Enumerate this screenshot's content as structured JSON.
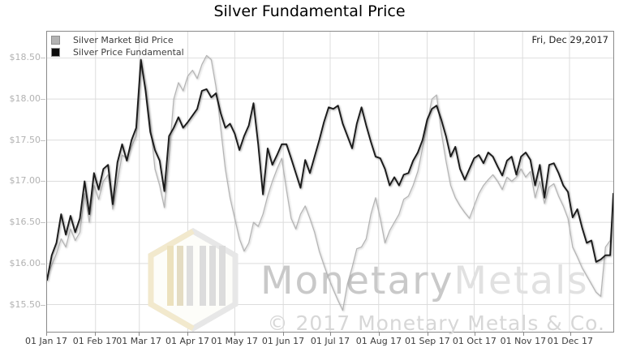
{
  "header": {
    "title": "Silver Fundamental Price"
  },
  "plot": {
    "date_annotation": "Fri, Dec 29,2017",
    "legend": {
      "items": [
        {
          "label": "Silver Market Bid Price",
          "swatch_color": "#b3b3b3"
        },
        {
          "label": "Silver Price Fundamental",
          "swatch_color": "#0d0d0d"
        }
      ]
    },
    "watermark": {
      "brand_primary": "Monetary",
      "brand_secondary": "Metals",
      "copyright": "© 2017 Monetary Metals & Co.",
      "logo": "monetary-metals-hexagon-logo",
      "logo_accent_color": "#f2e9cd",
      "text_color_primary": "#c9c9c9",
      "text_color_secondary": "#e1e1e1"
    }
  },
  "axes": {
    "y_labels": [
      "$18.50",
      "$18.00",
      "$17.50",
      "$17.00",
      "$16.50",
      "$16.00",
      "$15.50"
    ],
    "x_labels": [
      "01 Jan 17",
      "01 Feb 17",
      "01 Mar 17",
      "01 Apr 17",
      "01 May 17",
      "01 Jun 17",
      "01 Jul 17",
      "01 Aug 17",
      "01 Sep 17",
      "01 Oct 17",
      "01 Nov 17",
      "01 Dec 17"
    ]
  },
  "chart_data": {
    "type": "line",
    "title": "Silver Fundamental Price",
    "xlabel": "",
    "ylabel": "",
    "annotation": "Fri, Dec 29,2017",
    "grid": true,
    "legend_position": "top-left",
    "x_unit": "days since 01 Jan 2017",
    "x_range": [
      0,
      362
    ],
    "y_range_display": [
      15.17,
      18.82
    ],
    "y_tick_values": [
      18.5,
      18.0,
      17.5,
      17.0,
      16.5,
      16.0,
      15.5
    ],
    "y_tick_labels": [
      "$18.50",
      "$18.00",
      "$17.50",
      "$17.00",
      "$16.50",
      "$16.00",
      "$15.50"
    ],
    "x_tick_labels": [
      "01 Jan 17",
      "01 Feb 17",
      "01 Mar 17",
      "01 Apr 17",
      "01 May 17",
      "01 Jun 17",
      "01 Jul 17",
      "01 Aug 17",
      "01 Sep 17",
      "01 Oct 17",
      "01 Nov 17",
      "01 Dec 17"
    ],
    "x_tick_days": [
      0,
      31,
      59,
      90,
      120,
      151,
      181,
      212,
      243,
      273,
      304,
      334
    ],
    "days": [
      0,
      3,
      6,
      9,
      12,
      15,
      18,
      21,
      24,
      27,
      30,
      33,
      36,
      39,
      42,
      45,
      48,
      51,
      54,
      57,
      60,
      63,
      66,
      69,
      72,
      75,
      78,
      81,
      84,
      87,
      90,
      93,
      96,
      99,
      102,
      105,
      108,
      111,
      114,
      117,
      120,
      123,
      126,
      129,
      132,
      135,
      138,
      141,
      144,
      147,
      150,
      153,
      156,
      159,
      162,
      165,
      168,
      171,
      174,
      177,
      180,
      183,
      186,
      189,
      192,
      195,
      198,
      201,
      204,
      207,
      210,
      213,
      216,
      219,
      222,
      225,
      228,
      231,
      234,
      237,
      240,
      243,
      246,
      249,
      252,
      255,
      258,
      261,
      264,
      267,
      270,
      273,
      276,
      279,
      282,
      285,
      288,
      291,
      294,
      297,
      300,
      303,
      306,
      309,
      312,
      315,
      318,
      321,
      324,
      327,
      330,
      333,
      336,
      339,
      342,
      345,
      348,
      351,
      354,
      357,
      360,
      362
    ],
    "series": [
      {
        "name": "Silver Market Bid Price",
        "color": "#b3b3b3",
        "stroke_width": 1.2,
        "values": [
          15.85,
          15.98,
          16.12,
          16.3,
          16.2,
          16.42,
          16.28,
          16.38,
          16.85,
          16.5,
          16.95,
          16.78,
          17.0,
          17.08,
          16.66,
          17.0,
          17.32,
          17.28,
          17.42,
          17.55,
          18.4,
          18.15,
          17.7,
          17.15,
          16.95,
          16.68,
          17.3,
          18.0,
          18.2,
          18.1,
          18.28,
          18.35,
          18.25,
          18.42,
          18.53,
          18.48,
          18.15,
          17.65,
          17.15,
          16.8,
          16.55,
          16.3,
          16.15,
          16.25,
          16.5,
          16.45,
          16.6,
          16.82,
          17.0,
          17.15,
          17.28,
          16.9,
          16.55,
          16.42,
          16.6,
          16.7,
          16.55,
          16.38,
          16.15,
          15.98,
          15.82,
          15.68,
          15.55,
          15.43,
          15.75,
          15.95,
          16.18,
          16.2,
          16.3,
          16.6,
          16.8,
          16.55,
          16.25,
          16.4,
          16.5,
          16.6,
          16.78,
          16.82,
          16.95,
          17.12,
          17.4,
          17.7,
          18.0,
          18.05,
          17.6,
          17.25,
          16.95,
          16.8,
          16.7,
          16.62,
          16.55,
          16.7,
          16.85,
          16.95,
          17.02,
          17.08,
          17.0,
          16.9,
          17.05,
          17.0,
          17.05,
          17.15,
          17.05,
          17.12,
          16.8,
          17.0,
          16.73,
          16.93,
          16.97,
          16.82,
          16.7,
          16.55,
          16.2,
          16.08,
          15.95,
          15.85,
          15.75,
          15.65,
          15.6,
          16.2,
          16.28,
          16.72
        ]
      },
      {
        "name": "Silver Price Fundamental",
        "color": "#1a1a1a",
        "stroke_width": 1.9,
        "values": [
          15.8,
          16.1,
          16.25,
          16.6,
          16.35,
          16.58,
          16.38,
          16.55,
          17.0,
          16.6,
          17.1,
          16.9,
          17.15,
          17.2,
          16.72,
          17.23,
          17.45,
          17.25,
          17.5,
          17.65,
          18.48,
          18.1,
          17.6,
          17.38,
          17.25,
          16.88,
          17.55,
          17.65,
          17.78,
          17.65,
          17.72,
          17.8,
          17.88,
          18.1,
          18.12,
          18.02,
          18.07,
          17.83,
          17.65,
          17.7,
          17.58,
          17.38,
          17.55,
          17.68,
          17.95,
          17.45,
          16.84,
          17.4,
          17.2,
          17.32,
          17.45,
          17.45,
          17.28,
          17.1,
          16.92,
          17.26,
          17.1,
          17.3,
          17.5,
          17.72,
          17.9,
          17.88,
          17.92,
          17.7,
          17.55,
          17.4,
          17.7,
          17.9,
          17.68,
          17.48,
          17.3,
          17.28,
          17.15,
          16.95,
          17.05,
          16.95,
          17.08,
          17.1,
          17.25,
          17.35,
          17.5,
          17.75,
          17.88,
          17.92,
          17.75,
          17.55,
          17.3,
          17.42,
          17.15,
          17.02,
          17.15,
          17.28,
          17.32,
          17.22,
          17.35,
          17.3,
          17.18,
          17.07,
          17.25,
          17.3,
          17.08,
          17.3,
          17.35,
          17.26,
          16.95,
          17.2,
          16.8,
          17.2,
          17.22,
          17.1,
          16.95,
          16.87,
          16.56,
          16.66,
          16.44,
          16.25,
          16.28,
          16.02,
          16.05,
          16.1,
          16.1,
          16.85
        ]
      }
    ]
  }
}
